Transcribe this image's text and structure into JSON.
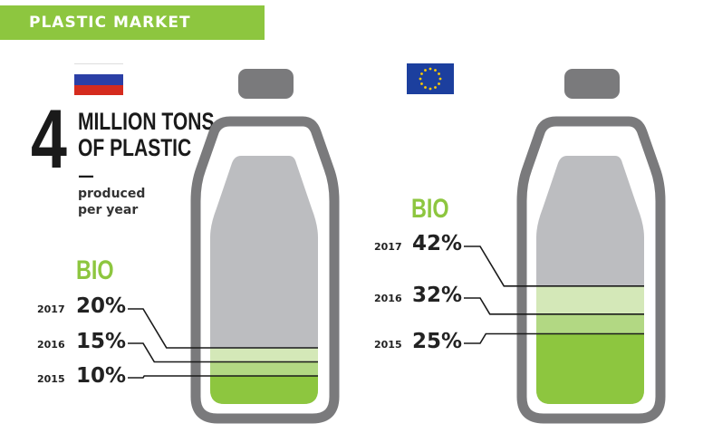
{
  "banner": {
    "title": "PLASTIC MARKET",
    "color": "#8dc63f"
  },
  "headline": {
    "number": "4",
    "line1": "MILLION TONS",
    "line2": "OF PLASTIC",
    "dash": "—",
    "sub_line1": "produced",
    "sub_line2": "per year"
  },
  "icons": {
    "russia": "russian-flag-icon",
    "eu": "eu-flag-icon"
  },
  "colors": {
    "bottle_outline": "#7a7a7c",
    "bottle_inner": "#bcbdc0",
    "bio_dark": "#8dc63f",
    "bio_mid": "#b2d883",
    "bio_light": "#d4e8b8",
    "flag_white": "#ffffff",
    "flag_blue": "#2b3fa6",
    "flag_red": "#d52b1e",
    "eu_blue": "#1c3f9e",
    "eu_star": "#ffcc00"
  },
  "chart_data": [
    {
      "type": "bar",
      "region": "russia",
      "label": "BIO",
      "categories": [
        "2017",
        "2016",
        "2015"
      ],
      "values": [
        20,
        15,
        10
      ],
      "labels": [
        "20%",
        "15%",
        "10%"
      ],
      "unit": "%"
    },
    {
      "type": "bar",
      "region": "eu",
      "label": "BIO",
      "categories": [
        "2017",
        "2016",
        "2015"
      ],
      "values": [
        42,
        32,
        25
      ],
      "labels": [
        "42%",
        "32%",
        "25%"
      ],
      "unit": "%"
    }
  ]
}
